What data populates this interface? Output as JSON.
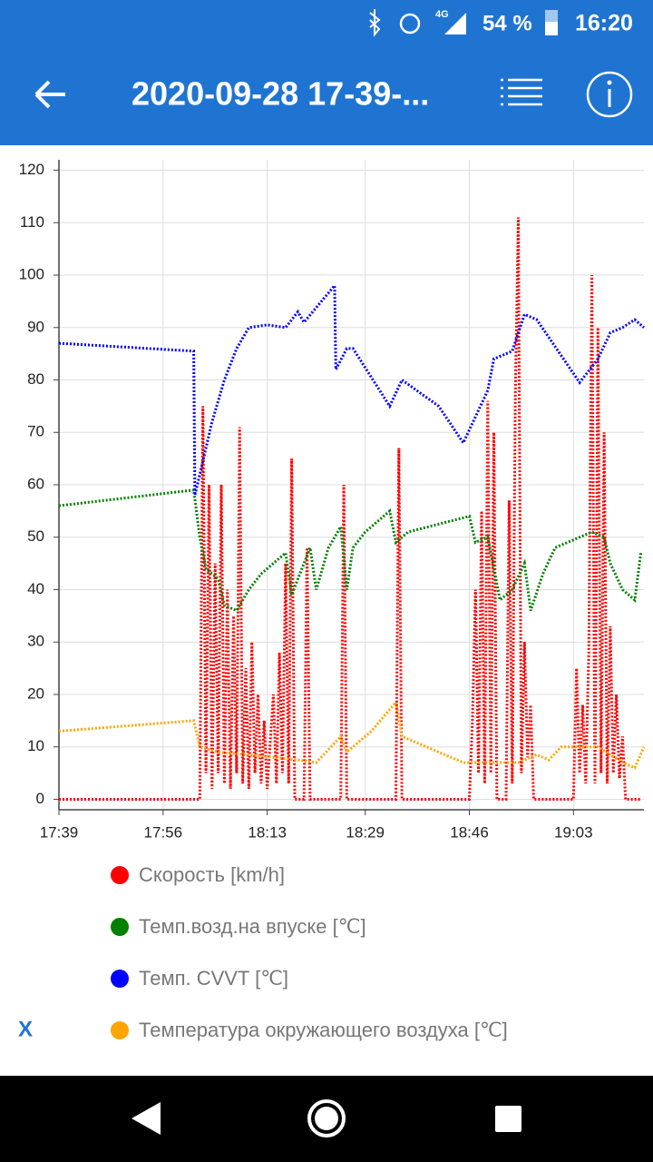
{
  "status_bar": {
    "network": "4G",
    "battery": "54 %",
    "time": "16:20"
  },
  "app_bar": {
    "title": "2020-09-28 17-39-..."
  },
  "legend_close": "X",
  "chart_data": {
    "type": "line",
    "xlim": [
      1059,
      1154.5
    ],
    "xticks": [
      {
        "value": 1059,
        "label": "17:39"
      },
      {
        "value": 1076,
        "label": "17:56"
      },
      {
        "value": 1093,
        "label": "18:13"
      },
      {
        "value": 1109,
        "label": "18:29"
      },
      {
        "value": 1126,
        "label": "18:46"
      },
      {
        "value": 1143,
        "label": "19:03"
      }
    ],
    "ylim": [
      -2,
      122
    ],
    "yticks": [
      0,
      10,
      20,
      30,
      40,
      50,
      60,
      70,
      80,
      90,
      100,
      110,
      120
    ],
    "grid": true,
    "series": [
      {
        "name": "Скорость [km/h]",
        "color": "#ff0000",
        "x": [
          1059,
          1082,
          1082.5,
          1083,
          1083.5,
          1084,
          1084.5,
          1085,
          1085.5,
          1086,
          1086.5,
          1087,
          1087.5,
          1088,
          1088.5,
          1089,
          1089.5,
          1090,
          1090.5,
          1091,
          1091.5,
          1092,
          1092.5,
          1093,
          1094,
          1094.5,
          1095,
          1095.5,
          1096,
          1096.5,
          1097,
          1097.5,
          1099,
          1099.5,
          1100,
          1105,
          1105.5,
          1106,
          1114,
          1114.5,
          1115,
          1126,
          1126.5,
          1127,
          1127.5,
          1128,
          1128.5,
          1129,
          1129.5,
          1130,
          1130.5,
          1132,
          1132.5,
          1133,
          1133.5,
          1134,
          1134.5,
          1135,
          1135.5,
          1136,
          1136.5,
          1143,
          1143.5,
          1144,
          1144.5,
          1145,
          1145.5,
          1146,
          1146.5,
          1147,
          1147.5,
          1148,
          1148.5,
          1149,
          1149.5,
          1150,
          1150.5,
          1151,
          1151.5,
          1154
        ],
        "values": [
          0,
          0,
          75,
          5,
          60,
          2,
          45,
          5,
          60,
          3,
          40,
          2,
          35,
          5,
          71,
          3,
          25,
          2,
          30,
          5,
          20,
          3,
          15,
          2,
          20,
          3,
          28,
          5,
          45,
          3,
          65,
          0,
          0,
          48,
          0,
          0,
          60,
          0,
          0,
          67,
          0,
          0,
          15,
          40,
          5,
          55,
          3,
          76,
          5,
          70,
          0,
          0,
          57,
          3,
          77,
          111,
          5,
          30,
          8,
          18,
          0,
          0,
          25,
          5,
          18,
          3,
          28,
          100,
          3,
          90,
          5,
          70,
          3,
          33,
          5,
          20,
          4,
          12,
          0,
          0
        ]
      },
      {
        "name": "Темп.возд.на впуске [℃]",
        "color": "#008000",
        "x": [
          1059,
          1081,
          1082,
          1083,
          1085,
          1086,
          1088,
          1090,
          1092,
          1094,
          1096,
          1097,
          1099,
          1100,
          1101,
          1103,
          1105,
          1106,
          1107,
          1109,
          1113,
          1114,
          1116,
          1126,
          1127,
          1129,
          1131,
          1133,
          1135,
          1136,
          1138,
          1140,
          1146,
          1148,
          1149,
          1151,
          1153,
          1154
        ],
        "values": [
          56,
          59,
          50,
          44,
          42,
          37,
          36,
          40,
          43,
          45,
          47,
          39,
          45,
          48,
          40,
          48,
          52,
          40,
          48,
          51,
          55,
          49,
          51,
          54,
          49,
          50,
          38,
          40,
          45,
          36,
          43,
          48,
          51,
          50,
          45,
          40,
          38,
          47
        ]
      },
      {
        "name": "Темп. CVVT [℃]",
        "color": "#0000ff",
        "x": [
          1059,
          1081,
          1081.2,
          1082,
          1084,
          1086,
          1088,
          1090,
          1093,
          1096,
          1098,
          1099,
          1104,
          1104.2,
          1106,
          1107,
          1113,
          1115,
          1121,
          1125,
          1129,
          1130,
          1133,
          1135,
          1137,
          1144,
          1147,
          1149,
          1151,
          1153,
          1154.5
        ],
        "values": [
          87,
          85.5,
          58,
          62,
          72,
          80,
          86,
          90,
          90.5,
          90,
          93,
          91,
          98,
          82,
          86,
          86,
          75,
          80,
          75,
          68,
          78,
          84,
          85.5,
          92.5,
          91.5,
          79.5,
          84,
          89,
          90,
          91.5,
          90
        ]
      },
      {
        "name": "Температура окружающего воздуха [℃]",
        "color": "#ffa500",
        "x": [
          1059,
          1081,
          1082,
          1085,
          1090,
          1098,
          1101,
          1105,
          1106,
          1110,
          1114,
          1115,
          1125,
          1134,
          1137,
          1139,
          1141,
          1147,
          1149,
          1152,
          1153,
          1154.5
        ],
        "values": [
          13,
          15,
          10,
          9,
          8.5,
          7.5,
          7,
          12,
          9,
          13,
          18.5,
          12,
          7,
          7,
          8.5,
          7.5,
          10,
          10,
          8.5,
          6.5,
          6,
          10
        ]
      }
    ]
  }
}
